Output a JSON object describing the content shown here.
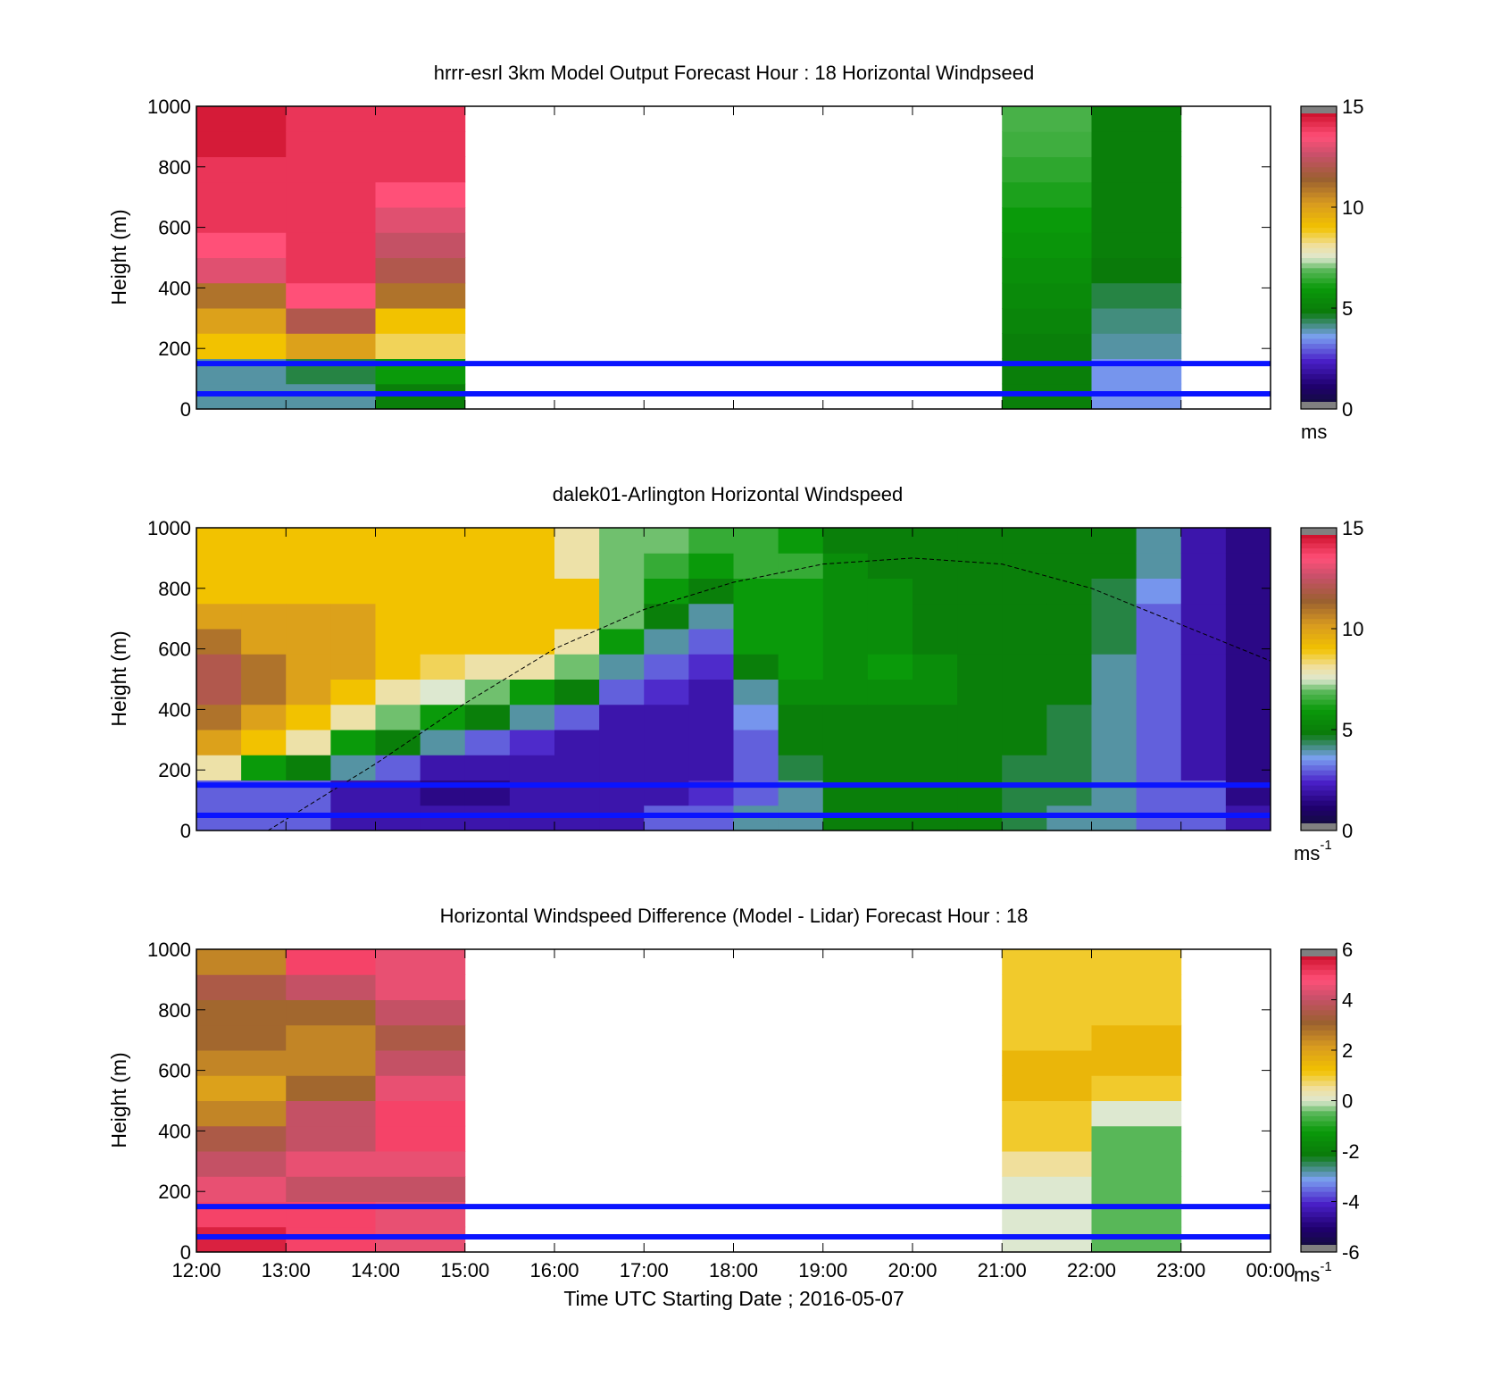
{
  "figure": {
    "xlabel": "Time UTC  Starting Date ; 2016-05-07",
    "xticks": [
      "12:00",
      "13:00",
      "14:00",
      "15:00",
      "16:00",
      "17:00",
      "18:00",
      "19:00",
      "20:00",
      "21:00",
      "22:00",
      "23:00",
      "00:00"
    ]
  },
  "chart_data": [
    {
      "type": "heatmap",
      "title": "hrrr-esrl 3km Model Output   Forecast Hour : 18 Horizontal Windpseed",
      "ylabel": "Height (m)",
      "yticks": [
        "0",
        "200",
        "400",
        "600",
        "800",
        "1000"
      ],
      "ylim": [
        0,
        1000
      ],
      "x_hours": [
        12,
        13,
        14,
        15,
        16,
        17,
        18,
        19,
        20,
        21,
        22,
        23,
        24
      ],
      "colorbar": {
        "ticks": [
          "0",
          "5",
          "10",
          "15"
        ],
        "range": [
          0,
          15
        ],
        "unit": "ms",
        "unit_sup": ""
      },
      "hlines_m": [
        50,
        150
      ],
      "columns": [
        {
          "hour": 12,
          "values": [
            4,
            4,
            9,
            10,
            11,
            13,
            13.5,
            14,
            14,
            14,
            14.5,
            14.5
          ]
        },
        {
          "hour": 13,
          "values": [
            4,
            4.5,
            10,
            12,
            13.5,
            14,
            14,
            14,
            14,
            14,
            14,
            14
          ]
        },
        {
          "hour": 14,
          "values": [
            5,
            6,
            8.5,
            9,
            11,
            12,
            12.5,
            13,
            13.5,
            14,
            14,
            14
          ]
        },
        {
          "hour": 21,
          "values": [
            5,
            5,
            5,
            5.2,
            5.4,
            5.6,
            5.8,
            6,
            6.2,
            6.4,
            6.6,
            6.7
          ]
        },
        {
          "hour": 22,
          "values": [
            3.5,
            3.5,
            4,
            4.2,
            4.5,
            4.8,
            5,
            5,
            5,
            5,
            5,
            5
          ]
        }
      ]
    },
    {
      "type": "heatmap",
      "title": "dalek01-Arlington  Horizontal Windspeed",
      "ylabel": "Height (m)",
      "yticks": [
        "0",
        "200",
        "400",
        "600",
        "800",
        "1000"
      ],
      "ylim": [
        0,
        1000
      ],
      "colorbar": {
        "ticks": [
          "0",
          "5",
          "10",
          "15"
        ],
        "range": [
          0,
          15
        ],
        "unit": "ms",
        "unit_sup": "-1"
      },
      "hlines_m": [
        50,
        150
      ],
      "boundary_layer_curve": {
        "x_hours": [
          12.8,
          14,
          15,
          16,
          17,
          18,
          19,
          20,
          21,
          22,
          23,
          24
        ],
        "height_m": [
          0,
          220,
          420,
          600,
          730,
          820,
          880,
          900,
          880,
          800,
          680,
          560
        ]
      },
      "columns": [
        {
          "hour": 12.0,
          "values": [
            3,
            3,
            8,
            10,
            11,
            12,
            12,
            11,
            10,
            9,
            9,
            9
          ]
        },
        {
          "hour": 12.5,
          "values": [
            3,
            3,
            6,
            9,
            10,
            11,
            11,
            10,
            10,
            9,
            9,
            9
          ]
        },
        {
          "hour": 13.0,
          "values": [
            3,
            3,
            5,
            8,
            9,
            10,
            10,
            10,
            10,
            9,
            9,
            9
          ]
        },
        {
          "hour": 13.5,
          "values": [
            2,
            2,
            4,
            6,
            8,
            9,
            10,
            10,
            10,
            9,
            9,
            9
          ]
        },
        {
          "hour": 14.0,
          "values": [
            2,
            2,
            3,
            5,
            7,
            8,
            9,
            9,
            9,
            9,
            9,
            9
          ]
        },
        {
          "hour": 14.5,
          "values": [
            2,
            1.5,
            2,
            4,
            6,
            7.5,
            8.5,
            9,
            9,
            9,
            9,
            9
          ]
        },
        {
          "hour": 15.0,
          "values": [
            2,
            1.5,
            2,
            3,
            5,
            7,
            8,
            9,
            9,
            9,
            9,
            9
          ]
        },
        {
          "hour": 15.5,
          "values": [
            2,
            2,
            2,
            2.5,
            4,
            6,
            8,
            9,
            9,
            9,
            9,
            9
          ]
        },
        {
          "hour": 16.0,
          "values": [
            2,
            2,
            2,
            2,
            3,
            5,
            7,
            8,
            9,
            9,
            8,
            8
          ]
        },
        {
          "hour": 16.5,
          "values": [
            2,
            2,
            2,
            2,
            2,
            3,
            4,
            6,
            7,
            7,
            7,
            7
          ]
        },
        {
          "hour": 17.0,
          "values": [
            3,
            2,
            2,
            2,
            2,
            2.5,
            3,
            4,
            5,
            6,
            6.5,
            7
          ]
        },
        {
          "hour": 17.5,
          "values": [
            3,
            2.5,
            2,
            2,
            2,
            2,
            2.5,
            3,
            4,
            5,
            6,
            6.5
          ]
        },
        {
          "hour": 18.0,
          "values": [
            4,
            3,
            3,
            3,
            3.5,
            4,
            5,
            6,
            6,
            6,
            6.5,
            6.5
          ]
        },
        {
          "hour": 18.5,
          "values": [
            4,
            4,
            4.5,
            5,
            5,
            5.5,
            6,
            6,
            6,
            6,
            6.5,
            6
          ]
        },
        {
          "hour": 19.0,
          "values": [
            5,
            5,
            5,
            5,
            5,
            5.5,
            5.5,
            5.5,
            5.5,
            5.5,
            5.5,
            5
          ]
        },
        {
          "hour": 19.5,
          "values": [
            5,
            5,
            5,
            5,
            5,
            5.5,
            6,
            5.5,
            5.5,
            5.5,
            5,
            5
          ]
        },
        {
          "hour": 20.0,
          "values": [
            5,
            5,
            5,
            5,
            5,
            5.5,
            5.5,
            5,
            5,
            5,
            5,
            5
          ]
        },
        {
          "hour": 20.5,
          "values": [
            5,
            5,
            5,
            5,
            5,
            5,
            5,
            5,
            5,
            5,
            5,
            5
          ]
        },
        {
          "hour": 21.0,
          "values": [
            4.5,
            4.5,
            4.5,
            5,
            5,
            5,
            5,
            5,
            5,
            5,
            5,
            5
          ]
        },
        {
          "hour": 21.5,
          "values": [
            4,
            4.5,
            4.5,
            4.5,
            4.5,
            5,
            5,
            5,
            5,
            5,
            5,
            5
          ]
        },
        {
          "hour": 22.0,
          "values": [
            4,
            4,
            4,
            4,
            4,
            4,
            4,
            4.5,
            4.5,
            4.5,
            5,
            5
          ]
        },
        {
          "hour": 22.5,
          "values": [
            3,
            3,
            3,
            3,
            3,
            3,
            3,
            3,
            3,
            3.5,
            4,
            4
          ]
        },
        {
          "hour": 23.0,
          "values": [
            3,
            3,
            2,
            2,
            2,
            2,
            2,
            2,
            2,
            2,
            2,
            2
          ]
        },
        {
          "hour": 23.5,
          "values": [
            2,
            1.5,
            1.5,
            1.5,
            1.5,
            1.5,
            1.5,
            1.5,
            1.5,
            1.5,
            1.5,
            1.5
          ]
        }
      ]
    },
    {
      "type": "heatmap",
      "title": "Horizontal Windspeed Difference (Model - Lidar) Forecast Hour : 18",
      "ylabel": "Height (m)",
      "yticks": [
        "0",
        "200",
        "400",
        "600",
        "800",
        "1000"
      ],
      "ylim": [
        0,
        1000
      ],
      "colorbar": {
        "ticks": [
          "-6",
          "-4",
          "-2",
          "0",
          "2",
          "4",
          "6"
        ],
        "range": [
          -6,
          6
        ],
        "unit": "ms",
        "unit_sup": "-1"
      },
      "hlines_m": [
        50,
        150
      ],
      "columns": [
        {
          "hour": 12,
          "values": [
            5.5,
            5,
            4.5,
            4,
            3.5,
            2.5,
            2,
            2.5,
            3,
            3,
            3.5,
            2.5
          ]
        },
        {
          "hour": 13,
          "values": [
            5,
            5,
            4,
            4.5,
            4,
            4,
            3,
            2.5,
            2.5,
            3,
            4,
            5
          ]
        },
        {
          "hour": 14,
          "values": [
            4.5,
            4.5,
            4,
            4.5,
            5,
            5,
            4.5,
            4,
            3.5,
            4,
            4.5,
            4.5
          ]
        },
        {
          "hour": 21,
          "values": [
            0,
            0,
            0,
            0.5,
            1,
            1,
            1.5,
            1.5,
            1,
            1,
            1,
            1
          ]
        },
        {
          "hour": 22,
          "values": [
            -0.5,
            -0.5,
            -0.5,
            -0.5,
            -0.5,
            0,
            1,
            1.5,
            1.5,
            1,
            1,
            1
          ]
        }
      ]
    }
  ]
}
